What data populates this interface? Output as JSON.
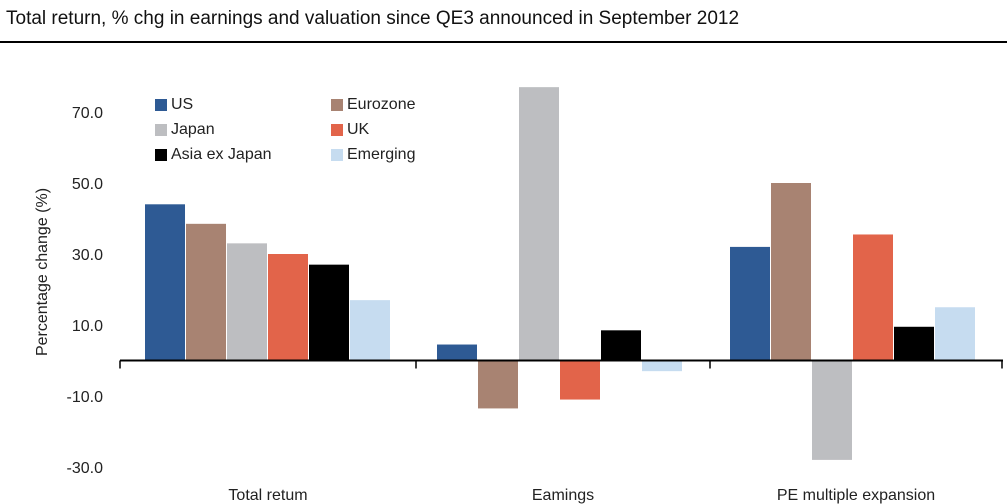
{
  "chart_data": {
    "type": "bar",
    "title": "Total return, % chg in earnings and valuation since QE3 announced in September 2012",
    "ylabel": "Percentage change (%)",
    "xlabel": "",
    "categories": [
      "Total retum",
      "Eamings",
      "PE multiple expansion"
    ],
    "yticks": [
      "70.0",
      "50.0",
      "30.0",
      "10.0",
      "-10.0",
      "-30.0"
    ],
    "ylim": [
      -30,
      70
    ],
    "grid": false,
    "legend": "top-left",
    "series": [
      {
        "name": "US",
        "color": "#2e5a94",
        "values": [
          44,
          4.5,
          32
        ]
      },
      {
        "name": "Eurozone",
        "color": "#a88372",
        "values": [
          38.5,
          -13.5,
          50
        ]
      },
      {
        "name": "Japan",
        "color": "#bdbec1",
        "values": [
          33,
          77,
          -28
        ]
      },
      {
        "name": "UK",
        "color": "#e2644a",
        "values": [
          30,
          -11,
          35.5
        ]
      },
      {
        "name": "Asia ex Japan",
        "color": "#000000",
        "values": [
          27,
          8.5,
          9.5
        ]
      },
      {
        "name": "Emerging",
        "color": "#c6dcf0",
        "values": [
          17,
          -3,
          15
        ]
      }
    ]
  }
}
